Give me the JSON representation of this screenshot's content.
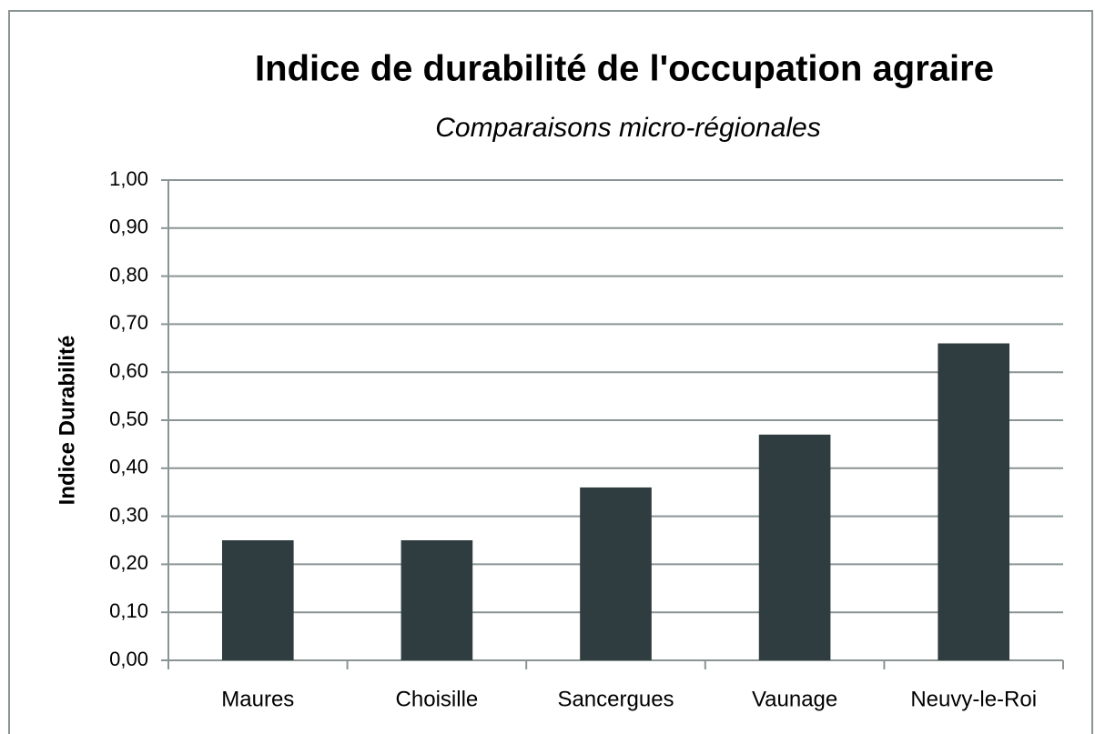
{
  "chart_data": {
    "type": "bar",
    "title": "Indice de durabilité de l'occupation agraire",
    "subtitle": "Comparaisons micro-régionales",
    "y_label": "Indice Durabilité",
    "categories": [
      "Maures",
      "Choisille",
      "Sancergues",
      "Vaunage",
      "Neuvy-le-Roi"
    ],
    "values": [
      0.25,
      0.25,
      0.36,
      0.47,
      0.66
    ],
    "color": "#2f3d40",
    "ylim": [
      0,
      1
    ],
    "yticks": [
      {
        "value": 0,
        "label": "0,00"
      },
      {
        "value": 0.1,
        "label": "0,10"
      },
      {
        "value": 0.2,
        "label": "0,20"
      },
      {
        "value": 0.3,
        "label": "0,30"
      },
      {
        "value": 0.4,
        "label": "0,40"
      },
      {
        "value": 0.5,
        "label": "0,50"
      },
      {
        "value": 0.6,
        "label": "0,60"
      },
      {
        "value": 0.7,
        "label": "0,70"
      },
      {
        "value": 0.8,
        "label": "0,80"
      },
      {
        "value": 0.9,
        "label": "0,90"
      },
      {
        "value": 1,
        "label": "1,00"
      }
    ],
    "grid": true
  }
}
